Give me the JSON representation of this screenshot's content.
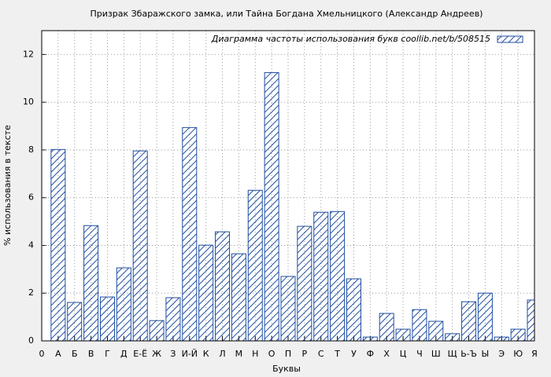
{
  "chart_data": {
    "type": "bar",
    "title": "Призрак Збаражского замка, или Тайна Богдана Хмельницкого (Александр Андреев)",
    "x_label": "Буквы",
    "y_label": "% использования в тексте",
    "categories": [
      "0",
      "А",
      "Б",
      "В",
      "Г",
      "Д",
      "Е-Ё",
      "Ж",
      "З",
      "И-Й",
      "К",
      "Л",
      "М",
      "Н",
      "О",
      "П",
      "Р",
      "С",
      "Т",
      "У",
      "Ф",
      "Х",
      "Ц",
      "Ч",
      "Ш",
      "Щ",
      "Ь-Ъ",
      "Ы",
      "Э",
      "Ю",
      "Я"
    ],
    "series": [
      {
        "name": "Диаграмма частоты использования букв  coollib.net/b/508515",
        "color": "#1f4ea0",
        "values": [
          null,
          8.02,
          1.61,
          4.83,
          1.84,
          3.06,
          7.96,
          0.85,
          1.81,
          8.94,
          4.01,
          4.57,
          3.65,
          6.31,
          11.24,
          2.7,
          4.8,
          5.39,
          5.42,
          2.6,
          0.16,
          1.15,
          0.49,
          1.31,
          0.82,
          0.3,
          1.64,
          2.0,
          0.16,
          0.49,
          1.71
        ]
      }
    ],
    "ylim": [
      0,
      13
    ],
    "yticks": [
      0,
      2,
      4,
      6,
      8,
      10,
      12
    ],
    "grid": true,
    "legend": "top-right"
  }
}
